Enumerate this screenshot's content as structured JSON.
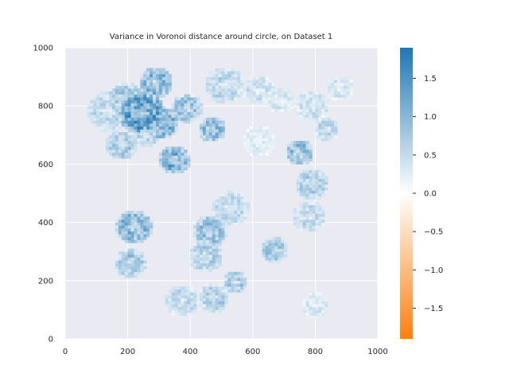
{
  "chart_data": {
    "type": "heatmap",
    "title": "Variance in Voronoi distance around circle, on Dataset 1",
    "xlabel": "",
    "ylabel": "",
    "xlim": [
      0,
      1000
    ],
    "ylim": [
      0,
      1000
    ],
    "x_ticks": [
      "0",
      "200",
      "400",
      "600",
      "800",
      "1000"
    ],
    "y_ticks": [
      "0",
      "200",
      "400",
      "600",
      "800",
      "1000"
    ],
    "grid": true,
    "background": "#eaeaf2",
    "cell_size": 10,
    "colorbar": {
      "min": -1.9,
      "max": 1.9,
      "ticks": [
        "−1.5",
        "−1.0",
        "−0.5",
        "0.0",
        "0.5",
        "1.0",
        "1.5"
      ],
      "tick_values": [
        -1.5,
        -1.0,
        -0.5,
        0.0,
        0.5,
        1.0,
        1.5
      ],
      "positive_color": "#1f77b4",
      "negative_color": "#ff7f0e"
    },
    "clusters": [
      {
        "x": 140,
        "y": 780,
        "r": 70,
        "peak": 0.6
      },
      {
        "x": 195,
        "y": 820,
        "r": 60,
        "peak": 0.8
      },
      {
        "x": 290,
        "y": 880,
        "r": 55,
        "peak": 1.1
      },
      {
        "x": 245,
        "y": 775,
        "r": 75,
        "peak": 1.4
      },
      {
        "x": 310,
        "y": 740,
        "r": 55,
        "peak": 1.2
      },
      {
        "x": 390,
        "y": 790,
        "r": 50,
        "peak": 0.9
      },
      {
        "x": 180,
        "y": 665,
        "r": 50,
        "peak": 0.8
      },
      {
        "x": 260,
        "y": 700,
        "r": 45,
        "peak": 0.6
      },
      {
        "x": 350,
        "y": 615,
        "r": 50,
        "peak": 1.2
      },
      {
        "x": 470,
        "y": 720,
        "r": 45,
        "peak": 1.0
      },
      {
        "x": 510,
        "y": 870,
        "r": 65,
        "peak": 0.6
      },
      {
        "x": 620,
        "y": 855,
        "r": 50,
        "peak": 0.5
      },
      {
        "x": 690,
        "y": 820,
        "r": 45,
        "peak": 0.4
      },
      {
        "x": 790,
        "y": 800,
        "r": 55,
        "peak": 0.5
      },
      {
        "x": 880,
        "y": 860,
        "r": 45,
        "peak": 0.4
      },
      {
        "x": 835,
        "y": 720,
        "r": 40,
        "peak": 0.6
      },
      {
        "x": 620,
        "y": 680,
        "r": 55,
        "peak": 0.3
      },
      {
        "x": 750,
        "y": 640,
        "r": 45,
        "peak": 1.0
      },
      {
        "x": 790,
        "y": 530,
        "r": 55,
        "peak": 0.7
      },
      {
        "x": 780,
        "y": 420,
        "r": 55,
        "peak": 0.6
      },
      {
        "x": 530,
        "y": 450,
        "r": 60,
        "peak": 0.6
      },
      {
        "x": 465,
        "y": 370,
        "r": 55,
        "peak": 0.9
      },
      {
        "x": 450,
        "y": 285,
        "r": 55,
        "peak": 0.7
      },
      {
        "x": 220,
        "y": 385,
        "r": 60,
        "peak": 1.1
      },
      {
        "x": 210,
        "y": 260,
        "r": 50,
        "peak": 0.8
      },
      {
        "x": 670,
        "y": 305,
        "r": 45,
        "peak": 0.8
      },
      {
        "x": 375,
        "y": 130,
        "r": 55,
        "peak": 0.6
      },
      {
        "x": 475,
        "y": 140,
        "r": 50,
        "peak": 0.7
      },
      {
        "x": 545,
        "y": 195,
        "r": 40,
        "peak": 0.8
      },
      {
        "x": 800,
        "y": 115,
        "r": 45,
        "peak": 0.4
      }
    ]
  }
}
